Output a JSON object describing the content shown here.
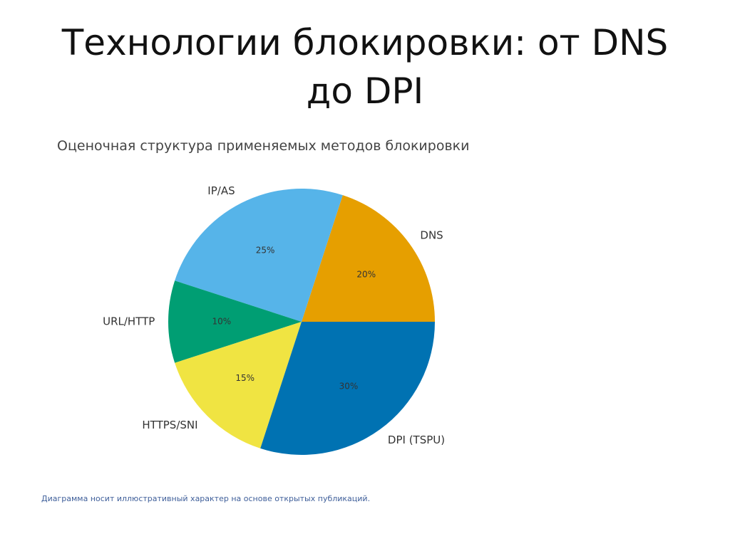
{
  "slide": {
    "title_line1": "Технологии блокировки: от DNS",
    "title_line2": "до DPI",
    "caption": "Диаграмма носит иллюстративный характер на основе открытых публикаций."
  },
  "chart_data": {
    "type": "pie",
    "title": "Оценочная структура применяемых методов блокировки",
    "start_angle_deg": 0,
    "direction": "counterclockwise",
    "slices": [
      {
        "label": "DNS",
        "value": 20,
        "value_label": "20%",
        "color": "#E69F00"
      },
      {
        "label": "IP/AS",
        "value": 25,
        "value_label": "25%",
        "color": "#56B4E9"
      },
      {
        "label": "URL/HTTP",
        "value": 10,
        "value_label": "10%",
        "color": "#009E73"
      },
      {
        "label": "HTTPS/SNI",
        "value": 15,
        "value_label": "15%",
        "color": "#F0E442"
      },
      {
        "label": "DPI (TSPU)",
        "value": 30,
        "value_label": "30%",
        "color": "#0072B2"
      }
    ]
  }
}
